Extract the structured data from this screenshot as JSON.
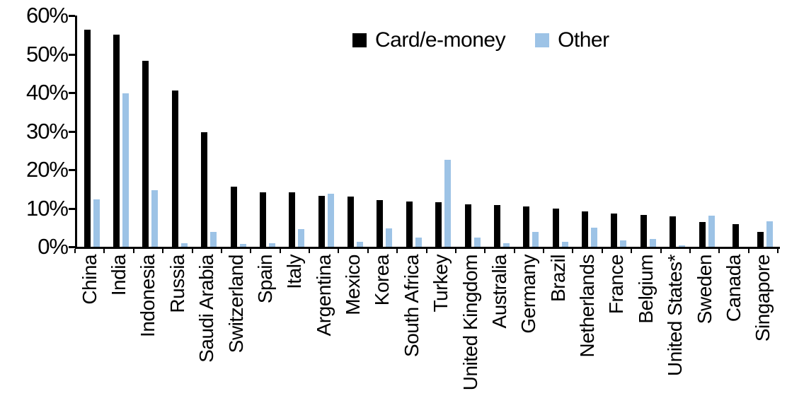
{
  "chart_data": {
    "type": "bar",
    "title": "",
    "xlabel": "",
    "ylabel": "",
    "categories": [
      "China",
      "India",
      "Indonesia",
      "Russia",
      "Saudi Arabia",
      "Switzerland",
      "Spain",
      "Italy",
      "Argentina",
      "Mexico",
      "Korea",
      "South Africa",
      "Turkey",
      "United Kingdom",
      "Australia",
      "Germany",
      "Brazil",
      "Netherlands",
      "France",
      "Belgium",
      "United States*",
      "Sweden",
      "Canada",
      "Singapore"
    ],
    "series": [
      {
        "name": "Card/e-money",
        "color": "#000000",
        "values": [
          56.3,
          55.0,
          48.3,
          40.5,
          29.8,
          15.6,
          14.2,
          14.1,
          13.3,
          13.0,
          12.1,
          11.7,
          11.6,
          11.0,
          10.8,
          10.5,
          10.0,
          9.2,
          8.7,
          8.2,
          7.9,
          6.5,
          5.9,
          3.9
        ]
      },
      {
        "name": "Other",
        "color": "#9DC3E6",
        "values": [
          12.3,
          39.8,
          14.6,
          1.0,
          3.9,
          0.8,
          1.0,
          4.6,
          13.8,
          1.3,
          4.7,
          2.4,
          22.5,
          2.3,
          1.0,
          3.9,
          1.2,
          4.9,
          1.6,
          2.1,
          0.3,
          8.1,
          0.0,
          6.7
        ]
      }
    ],
    "ylim": [
      0,
      60
    ],
    "ytick_labels": [
      "0%",
      "10%",
      "20%",
      "30%",
      "40%",
      "50%",
      "60%"
    ],
    "grid": false,
    "legend_position": "top-center"
  }
}
